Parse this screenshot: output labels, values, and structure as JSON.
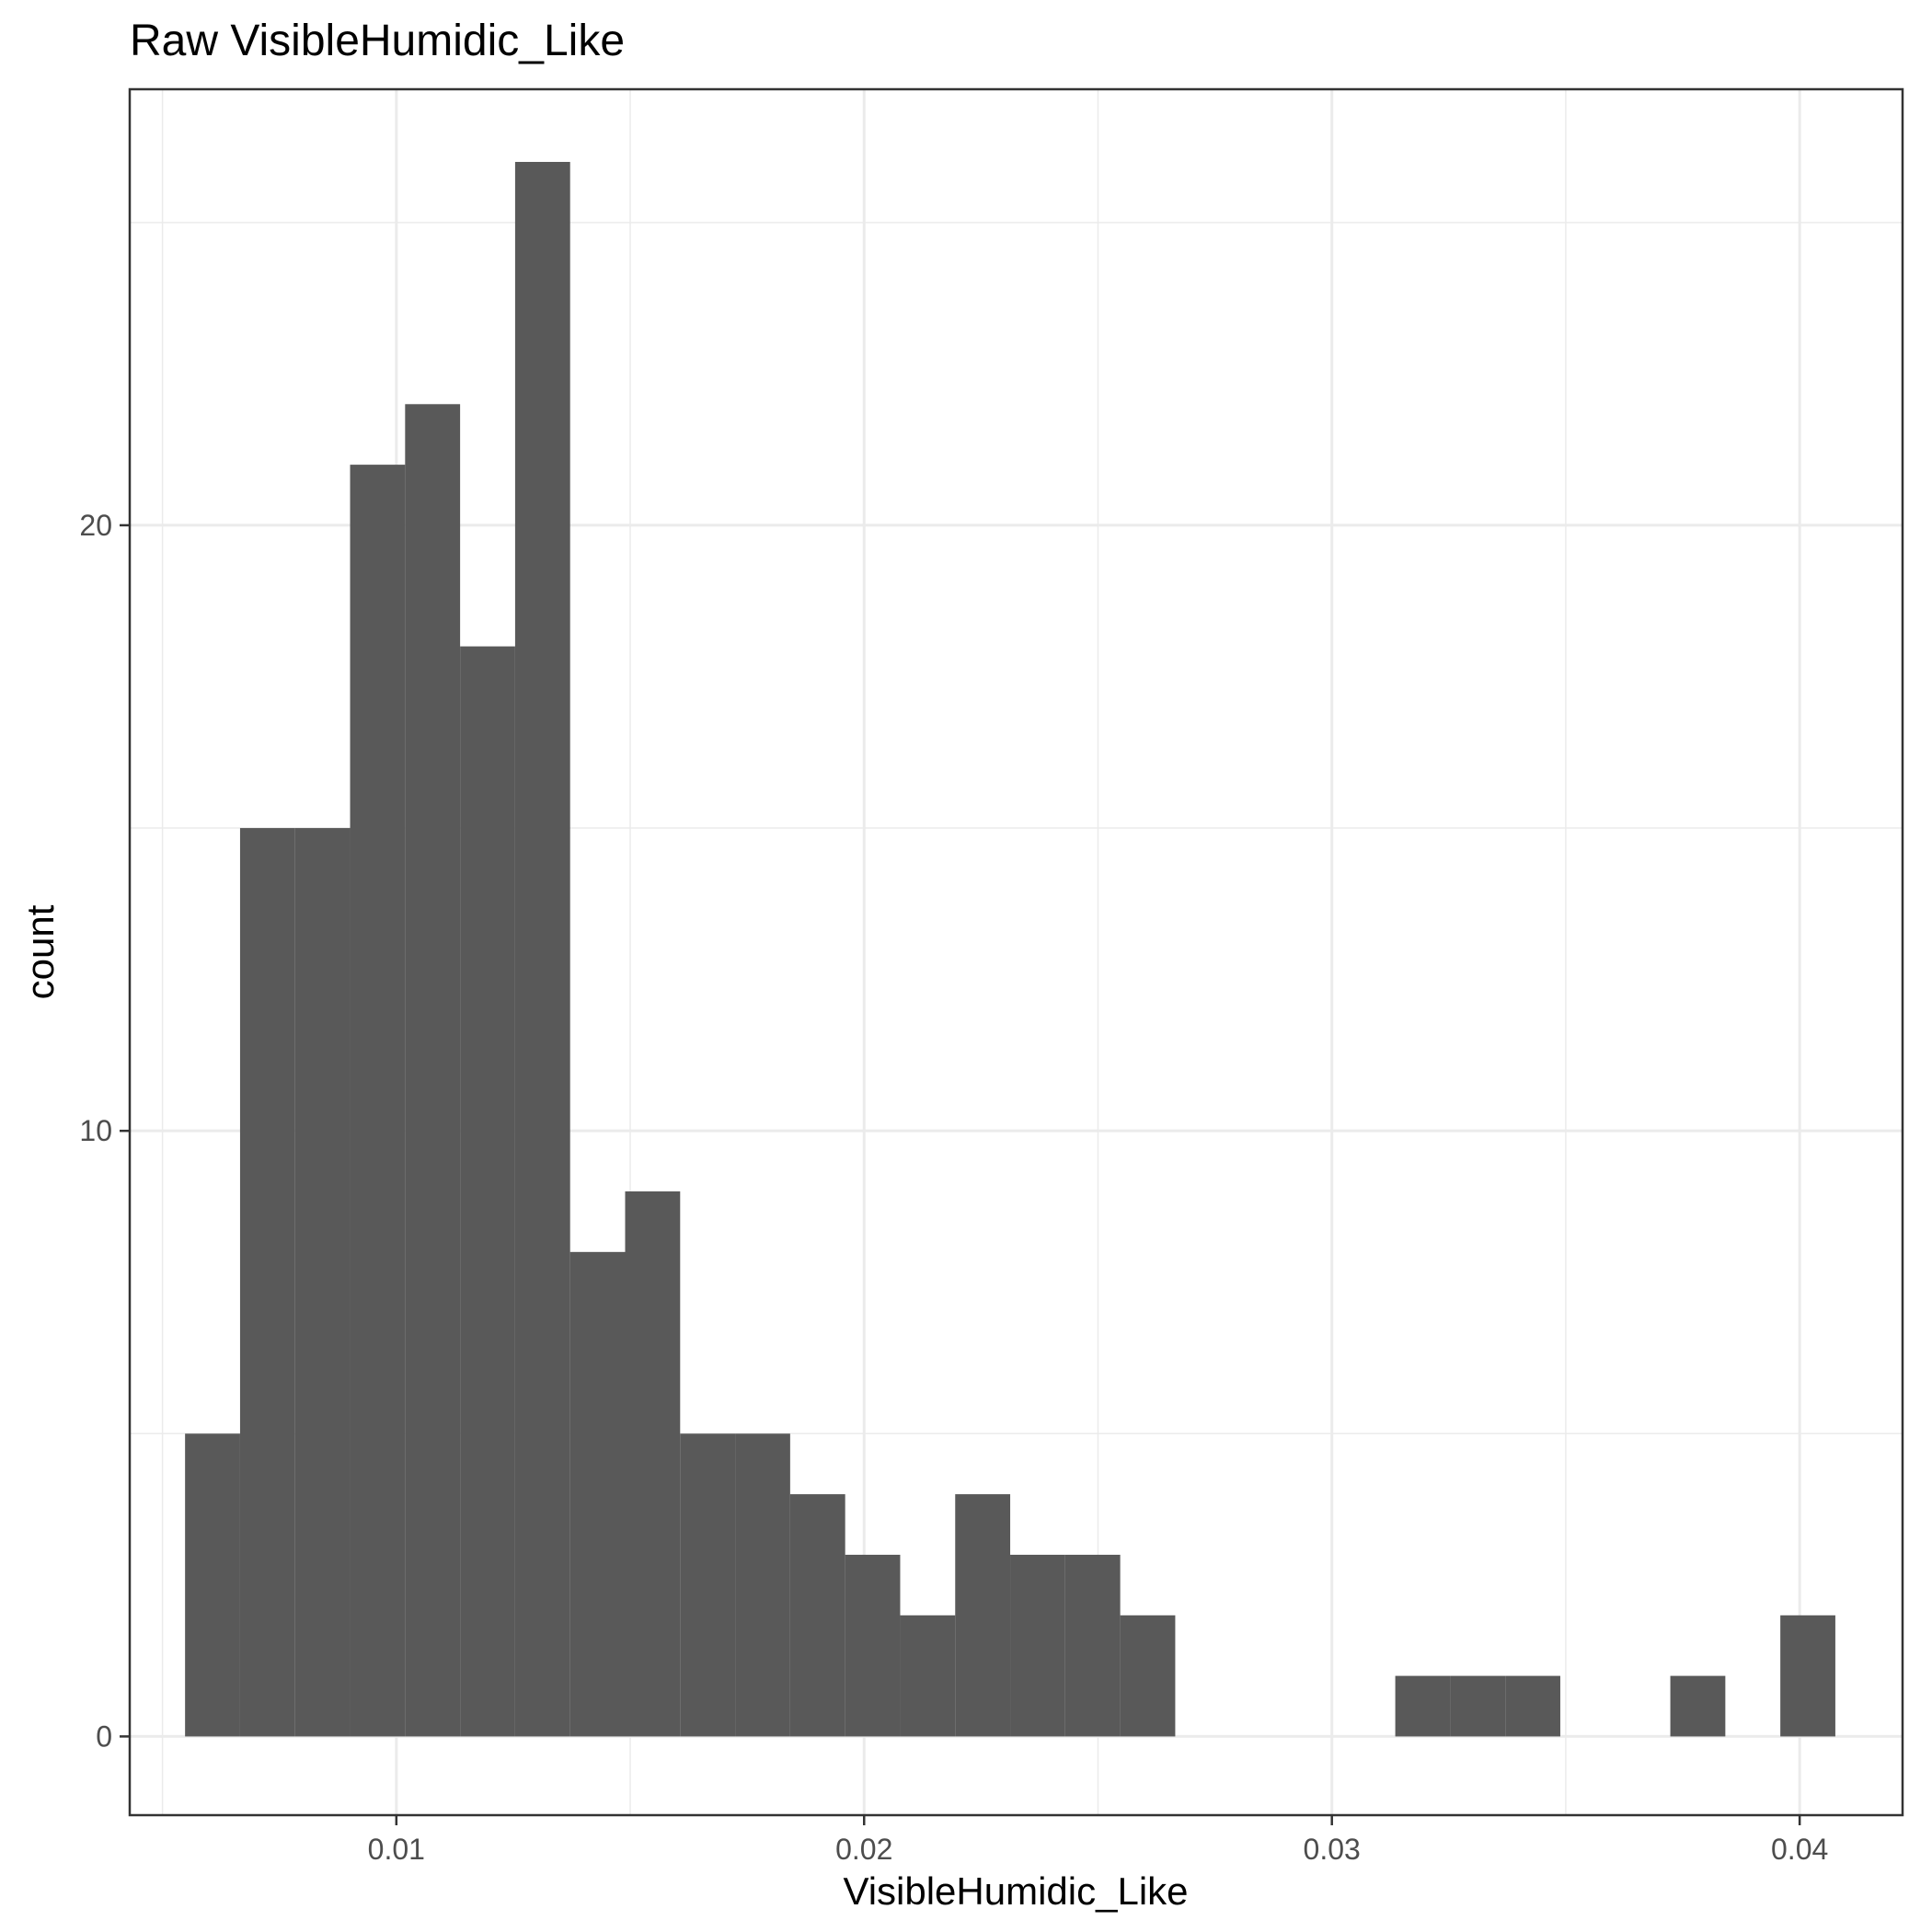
{
  "chart_data": {
    "type": "bar",
    "title": "Raw VisibleHumidic_Like",
    "xlabel": "VisibleHumidic_Like",
    "ylabel": "count",
    "xlim": [
      0.0043,
      0.0422
    ],
    "ylim": [
      -1.3,
      27.2
    ],
    "x_ticks": [
      0.01,
      0.02,
      0.03,
      0.04
    ],
    "x_tick_labels": [
      "0.01",
      "0.02",
      "0.03",
      "0.04"
    ],
    "y_ticks": [
      0,
      10,
      20
    ],
    "y_tick_labels": [
      "0",
      "10",
      "20"
    ],
    "grid": true,
    "bin_width": 0.001176,
    "bins": [
      {
        "x0": 0.005483,
        "x1": 0.006659,
        "count": 5
      },
      {
        "x0": 0.006659,
        "x1": 0.007835,
        "count": 15
      },
      {
        "x0": 0.007835,
        "x1": 0.009011,
        "count": 15
      },
      {
        "x0": 0.009011,
        "x1": 0.010187,
        "count": 21
      },
      {
        "x0": 0.010187,
        "x1": 0.011363,
        "count": 22
      },
      {
        "x0": 0.011363,
        "x1": 0.012539,
        "count": 18
      },
      {
        "x0": 0.012539,
        "x1": 0.013715,
        "count": 26
      },
      {
        "x0": 0.013715,
        "x1": 0.014891,
        "count": 8
      },
      {
        "x0": 0.014891,
        "x1": 0.016067,
        "count": 9
      },
      {
        "x0": 0.016067,
        "x1": 0.017243,
        "count": 5
      },
      {
        "x0": 0.017243,
        "x1": 0.018419,
        "count": 5
      },
      {
        "x0": 0.018419,
        "x1": 0.019595,
        "count": 4
      },
      {
        "x0": 0.019595,
        "x1": 0.020771,
        "count": 3
      },
      {
        "x0": 0.020771,
        "x1": 0.021947,
        "count": 2
      },
      {
        "x0": 0.021947,
        "x1": 0.023123,
        "count": 4
      },
      {
        "x0": 0.023123,
        "x1": 0.024299,
        "count": 3
      },
      {
        "x0": 0.024299,
        "x1": 0.025475,
        "count": 3
      },
      {
        "x0": 0.025475,
        "x1": 0.026651,
        "count": 2
      },
      {
        "x0": 0.026651,
        "x1": 0.027827,
        "count": 0
      },
      {
        "x0": 0.027827,
        "x1": 0.029003,
        "count": 0
      },
      {
        "x0": 0.029003,
        "x1": 0.030179,
        "count": 0
      },
      {
        "x0": 0.030179,
        "x1": 0.031355,
        "count": 0
      },
      {
        "x0": 0.031355,
        "x1": 0.032531,
        "count": 1
      },
      {
        "x0": 0.032531,
        "x1": 0.033707,
        "count": 1
      },
      {
        "x0": 0.033707,
        "x1": 0.034883,
        "count": 1
      },
      {
        "x0": 0.034883,
        "x1": 0.036059,
        "count": 0
      },
      {
        "x0": 0.036059,
        "x1": 0.037235,
        "count": 0
      },
      {
        "x0": 0.037235,
        "x1": 0.038411,
        "count": 1
      },
      {
        "x0": 0.038411,
        "x1": 0.039587,
        "count": 0
      },
      {
        "x0": 0.039587,
        "x1": 0.040763,
        "count": 2
      }
    ]
  }
}
